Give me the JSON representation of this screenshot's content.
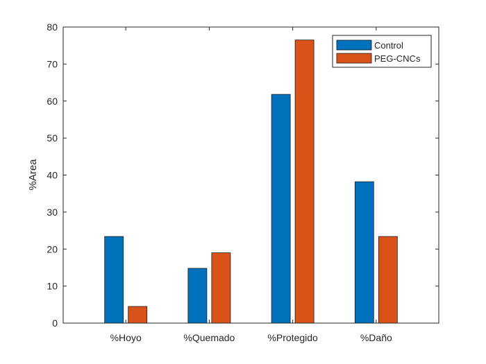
{
  "chart_data": {
    "type": "bar",
    "categories": [
      "%Hoyo",
      "%Quemado",
      "%Protegido",
      "%Daño"
    ],
    "series": [
      {
        "name": "Control",
        "values": [
          23.4,
          14.8,
          61.8,
          38.2
        ],
        "color": "#0072BD"
      },
      {
        "name": "PEG-CNCs",
        "values": [
          4.5,
          19.0,
          76.5,
          23.4
        ],
        "color": "#D95319"
      }
    ],
    "xlabel": "",
    "ylabel": "%Area",
    "ylim": [
      0,
      80
    ],
    "yticks": [
      "0",
      "10",
      "20",
      "30",
      "40",
      "50",
      "60",
      "70",
      "80"
    ],
    "grid": false,
    "legend_position": "top-right"
  }
}
